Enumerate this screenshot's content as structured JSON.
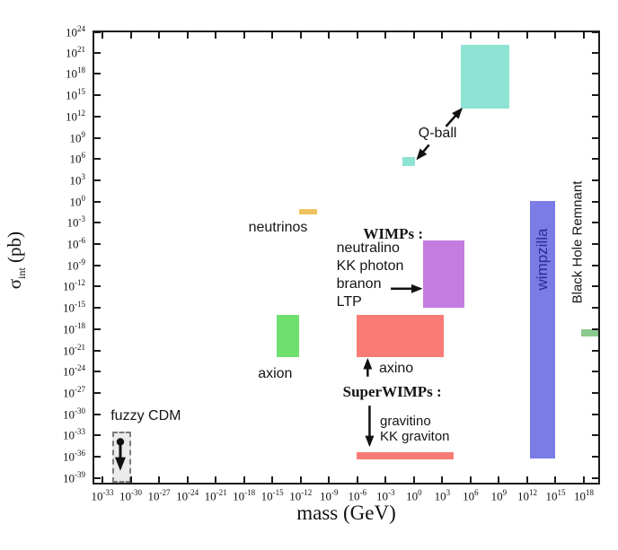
{
  "chart_data": {
    "type": "scatter",
    "subtype": "log-log-region-boxes",
    "title": "",
    "xlabel": "mass (GeV)",
    "ylabel": "σint (pb)",
    "x_axis": {
      "label": "mass (GeV)",
      "base": "10",
      "min_exp": -33,
      "max_exp": 18,
      "tick_step": 3
    },
    "y_axis": {
      "symbol": "σ",
      "symbol_sub": "int",
      "unit": " (pb)",
      "base": "10",
      "min_exp": -39,
      "max_exp": 24,
      "tick_step": 3
    },
    "regions": [
      {
        "id": "fuzzy-cdm",
        "label": "fuzzy CDM",
        "x": [
          -32,
          -30
        ],
        "y": [
          -32.5,
          -40
        ],
        "fill": "#ebebeb",
        "border": "dashed",
        "border_color": "#7d7d7d"
      },
      {
        "id": "axion",
        "label": "axion",
        "x": [
          -14.5,
          -12.2
        ],
        "y": [
          -16,
          -22
        ],
        "fill": "#6fdf6f"
      },
      {
        "id": "neutrinos",
        "label": "neutrinos",
        "x": [
          -12.2,
          -10.3
        ],
        "y": [
          -1.0,
          -1.8
        ],
        "fill": "#eec25e"
      },
      {
        "id": "wimps",
        "label": "WIMPs : neutralino, KK photon, branon, LTP",
        "x": [
          1.0,
          5.3
        ],
        "y": [
          -5.5,
          -15
        ],
        "fill": "#c47ce0"
      },
      {
        "id": "axino",
        "label": "axino",
        "x": [
          -6.1,
          3.2
        ],
        "y": [
          -16,
          -22
        ],
        "fill": "#f87c75"
      },
      {
        "id": "superwimps",
        "label": "SuperWIMPs : gravitino, KK graviton",
        "x": [
          -6.1,
          4.2
        ],
        "y": [
          -35.4,
          -36.4
        ],
        "fill": "#f87c75"
      },
      {
        "id": "qball-small",
        "label": "Q-ball",
        "x": [
          -1.2,
          0.1
        ],
        "y": [
          6.3,
          5.0
        ],
        "fill": "#8fe3d4"
      },
      {
        "id": "qball-large",
        "label": "Q-ball",
        "x": [
          5.0,
          10.1
        ],
        "y": [
          22.1,
          13.1
        ],
        "fill": "#8fe3d4"
      },
      {
        "id": "wimpzilla",
        "label": "wimpzilla",
        "x": [
          12.3,
          15.0
        ],
        "y": [
          0.1,
          -36.3
        ],
        "fill": "#7b7ce6"
      },
      {
        "id": "black-hole-remnant",
        "label": "Black Hole Remnant",
        "x": [
          17.7,
          19.6
        ],
        "y": [
          -18,
          -19.1
        ],
        "fill": "#8cc98c"
      }
    ],
    "annotations": [
      {
        "id": "fuzzy-cdm-label",
        "lines": [
          "fuzzy CDM"
        ],
        "x": -28.4,
        "y": -30.3,
        "anchor": "center",
        "font": "sans",
        "size": 16
      },
      {
        "id": "neutrinos-label",
        "lines": [
          "neutrinos"
        ],
        "x": -14.4,
        "y": -3.7,
        "anchor": "center",
        "font": "sans",
        "size": 16
      },
      {
        "id": "axion-label",
        "lines": [
          "axion"
        ],
        "x": -14.7,
        "y": -24.3,
        "anchor": "center",
        "font": "sans",
        "size": 16
      },
      {
        "id": "wimps-title",
        "lines": [
          "WIMPs :"
        ],
        "x": -2.2,
        "y": -4.6,
        "anchor": "center",
        "font": "serif",
        "size": 17,
        "bold": true
      },
      {
        "id": "wimps-list",
        "lines": [
          "neutralino",
          "KK photon",
          "branon",
          "LTP"
        ],
        "x": -8.2,
        "y": -5.4,
        "anchor": "top-left",
        "font": "sans",
        "size": 16,
        "line_height": 20
      },
      {
        "id": "qball-label",
        "lines": [
          "Q-ball"
        ],
        "x": 2.5,
        "y": 9.6,
        "anchor": "center",
        "font": "sans",
        "size": 16
      },
      {
        "id": "axino-label",
        "lines": [
          "axino"
        ],
        "x": -3.7,
        "y": -23.6,
        "anchor": "left-center",
        "font": "sans",
        "size": 16
      },
      {
        "id": "superwimps-title",
        "lines": [
          "SuperWIMPs :"
        ],
        "x": -2.3,
        "y": -26.9,
        "anchor": "center",
        "font": "serif",
        "size": 17,
        "bold": true
      },
      {
        "id": "gravitino-list",
        "lines": [
          "gravitino",
          "KK graviton"
        ],
        "x": -3.6,
        "y": -29.9,
        "anchor": "top-left",
        "font": "sans",
        "size": 15,
        "line_height": 17
      },
      {
        "id": "wimpzilla-label",
        "lines": [
          "wimpzilla"
        ],
        "x": 13.6,
        "y": -8.2,
        "anchor": "center",
        "font": "sans",
        "size": 17,
        "rotate": -90,
        "color": "#2c2c96"
      },
      {
        "id": "black-hole-remnant-label",
        "lines": [
          "Black Hole Remnant"
        ],
        "x": 17.3,
        "y": -5.7,
        "anchor": "center",
        "font": "sans",
        "size": 15,
        "rotate": -90
      }
    ],
    "arrows": [
      {
        "id": "fuzzy-cdm-arrow",
        "from": [
          -31.1,
          -33.9
        ],
        "to": [
          -31.1,
          -37.6
        ],
        "width": 3,
        "dot_start": true
      },
      {
        "id": "ltp-arrow",
        "from": [
          -2.45,
          -12.3
        ],
        "to": [
          0.68,
          -12.3
        ],
        "width": 2.5
      },
      {
        "id": "qball-arrow-large",
        "from": [
          3.4,
          10.6
        ],
        "to": [
          5.0,
          13.0
        ],
        "width": 2.5
      },
      {
        "id": "qball-arrow-small",
        "from": [
          1.6,
          8.0
        ],
        "to": [
          0.4,
          6.1
        ],
        "width": 2.5
      },
      {
        "id": "superwimps-arrow-up",
        "from": [
          -4.9,
          -24.7
        ],
        "to": [
          -4.9,
          -22.4
        ],
        "width": 2.5
      },
      {
        "id": "superwimps-arrow-down",
        "from": [
          -4.7,
          -28.8
        ],
        "to": [
          -4.7,
          -34.3
        ],
        "width": 2.5
      }
    ],
    "frame_color": "#1b1b1b"
  }
}
